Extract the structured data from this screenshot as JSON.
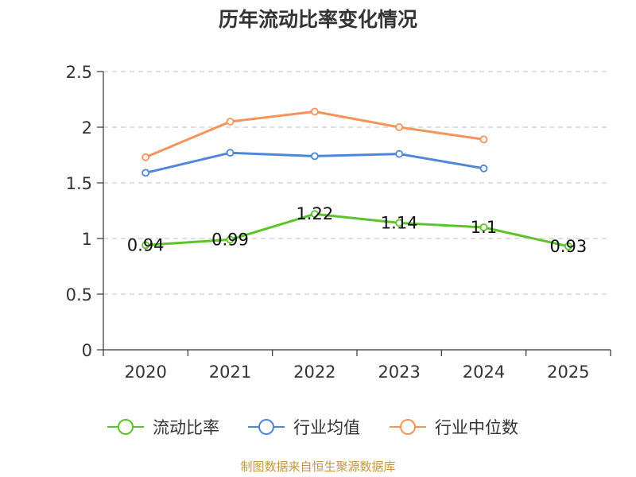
{
  "chart_data": {
    "type": "line",
    "title": "历年流动比率变化情况",
    "categories": [
      "2020",
      "2021",
      "2022",
      "2023",
      "2024",
      "2025"
    ],
    "ylim": [
      0,
      2.5
    ],
    "yticks": [
      "0",
      "0.5",
      "1",
      "1.5",
      "2",
      "2.5"
    ],
    "ytick_values": [
      0,
      0.5,
      1,
      1.5,
      2,
      2.5
    ],
    "grid": true,
    "legend_position": "bottom",
    "series": [
      {
        "name": "流动比率",
        "color": "#5cc42a",
        "values": [
          0.94,
          0.99,
          1.22,
          1.14,
          1.1,
          0.93
        ],
        "labels": [
          "0.94",
          "0.99",
          "1.22",
          "1.14",
          "1.1",
          "0.93"
        ],
        "show_labels": true
      },
      {
        "name": "行业均值",
        "color": "#4f86d9",
        "values": [
          1.59,
          1.77,
          1.74,
          1.76,
          1.63,
          null
        ],
        "show_labels": false
      },
      {
        "name": "行业中位数",
        "color": "#f5935a",
        "values": [
          1.73,
          2.05,
          2.14,
          2.0,
          1.89,
          null
        ],
        "show_labels": false
      }
    ],
    "source": "制图数据来自恒生聚源数据库"
  }
}
